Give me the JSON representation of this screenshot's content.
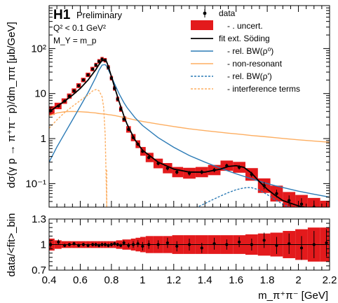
{
  "chart_data": [
    {
      "type": "scatter",
      "name": "cross-section",
      "experiment": "H1",
      "status": "Preliminary",
      "conditions": [
        "Q² < 0.1 GeV²",
        "M_Y = m_p"
      ],
      "ylabel": "dσ(γ p → π⁺π⁻ p)/dm_ππ [μb/GeV]",
      "xlim": [
        0.4,
        2.2
      ],
      "ylim": [
        0.03,
        900
      ],
      "yscale": "log",
      "yticks": [
        0.1,
        1,
        10,
        100
      ],
      "ytick_labels": [
        "10⁻¹",
        "1",
        "10",
        "10²"
      ],
      "legend_position": "top-right",
      "legend": [
        {
          "label": "data",
          "style": "marker"
        },
        {
          "label": "- . uncert.",
          "style": "box",
          "color": "#e31a1c"
        },
        {
          "label": "fit ext. Söding",
          "style": "line",
          "color": "#000000"
        },
        {
          "label": "- rel. BW(ρ⁰)",
          "style": "line",
          "color": "#2c7bb6"
        },
        {
          "label": "- non-resonant",
          "style": "line",
          "color": "#fdae61"
        },
        {
          "label": "- rel. BW(ρ')",
          "style": "dashed",
          "color": "#2c7bb6"
        },
        {
          "label": "- interference terms",
          "style": "dashed",
          "color": "#fdae61"
        }
      ],
      "data_points": {
        "x": [
          0.41,
          0.46,
          0.5,
          0.53,
          0.56,
          0.59,
          0.62,
          0.65,
          0.68,
          0.7,
          0.72,
          0.74,
          0.76,
          0.78,
          0.8,
          0.82,
          0.84,
          0.86,
          0.88,
          0.91,
          0.94,
          0.97,
          1.0,
          1.04,
          1.1,
          1.16,
          1.22,
          1.3,
          1.38,
          1.46,
          1.54,
          1.62,
          1.7,
          1.78,
          1.86,
          1.94,
          2.02,
          2.1,
          2.18
        ],
        "y": [
          4.2,
          5.3,
          6.8,
          8.8,
          11.5,
          15,
          20,
          26,
          35,
          43,
          52,
          58,
          55,
          38,
          22,
          13,
          7.5,
          4.5,
          2.7,
          1.6,
          1.05,
          0.75,
          0.52,
          0.38,
          0.28,
          0.22,
          0.18,
          0.17,
          0.18,
          0.2,
          0.25,
          0.23,
          0.16,
          0.09,
          0.06,
          0.042,
          0.035,
          0.03,
          0.026
        ],
        "yerr_rel": [
          0.15,
          0.06,
          0.05,
          0.04,
          0.04,
          0.04,
          0.03,
          0.03,
          0.03,
          0.03,
          0.03,
          0.03,
          0.03,
          0.03,
          0.03,
          0.03,
          0.04,
          0.04,
          0.05,
          0.05,
          0.06,
          0.07,
          0.08,
          0.09,
          0.1,
          0.12,
          0.12,
          0.13,
          0.12,
          0.12,
          0.11,
          0.12,
          0.15,
          0.2,
          0.22,
          0.3,
          0.35,
          0.4,
          0.45
        ],
        "unc_rel": [
          0.25,
          0.18,
          0.15,
          0.14,
          0.13,
          0.13,
          0.12,
          0.12,
          0.12,
          0.12,
          0.12,
          0.12,
          0.12,
          0.12,
          0.12,
          0.12,
          0.13,
          0.14,
          0.15,
          0.18,
          0.2,
          0.22,
          0.25,
          0.27,
          0.28,
          0.3,
          0.3,
          0.32,
          0.3,
          0.3,
          0.3,
          0.32,
          0.38,
          0.45,
          0.5,
          0.55,
          0.6,
          0.6,
          0.6
        ]
      },
      "curves": {
        "x": [
          0.4,
          0.45,
          0.5,
          0.55,
          0.6,
          0.65,
          0.7,
          0.72,
          0.74,
          0.76,
          0.77,
          0.78,
          0.8,
          0.82,
          0.85,
          0.88,
          0.9,
          0.95,
          1.0,
          1.1,
          1.2,
          1.3,
          1.4,
          1.5,
          1.55,
          1.6,
          1.65,
          1.7,
          1.75,
          1.8,
          1.85,
          1.9,
          2.0,
          2.1,
          2.2
        ],
        "fit": [
          3.9,
          5.2,
          6.8,
          9.2,
          13,
          20,
          34,
          44,
          54,
          55,
          50,
          40,
          24,
          14,
          6.5,
          3.2,
          2.1,
          0.95,
          0.55,
          0.3,
          0.21,
          0.18,
          0.18,
          0.21,
          0.24,
          0.25,
          0.23,
          0.17,
          0.11,
          0.075,
          0.055,
          0.042,
          0.032,
          0.027,
          0.024
        ],
        "bw_rho0": [
          0.3,
          0.65,
          1.3,
          2.6,
          5.2,
          10.5,
          23,
          33,
          43,
          44,
          40,
          34,
          24,
          16.5,
          9.8,
          6.3,
          4.9,
          2.95,
          1.95,
          1.05,
          0.64,
          0.42,
          0.3,
          0.22,
          0.19,
          0.165,
          0.145,
          0.128,
          0.113,
          0.1,
          0.09,
          0.082,
          0.068,
          0.058,
          0.05
        ],
        "non_resonant": [
          3.2,
          3.7,
          3.95,
          4.0,
          3.95,
          3.85,
          3.7,
          3.6,
          3.55,
          3.5,
          3.45,
          3.4,
          3.35,
          3.25,
          3.1,
          2.95,
          2.85,
          2.6,
          2.4,
          2.1,
          1.85,
          1.65,
          1.5,
          1.38,
          1.32,
          1.27,
          1.22,
          1.17,
          1.13,
          1.09,
          1.05,
          1.01,
          0.94,
          0.88,
          0.83
        ]
      },
      "bw_rho_prime": {
        "x": [
          1.3,
          1.35,
          1.4,
          1.45,
          1.5,
          1.55,
          1.6,
          1.65,
          1.68,
          1.7,
          1.75,
          1.8,
          1.85,
          1.9,
          1.95,
          2.0
        ],
        "y": [
          0.025,
          0.03,
          0.036,
          0.044,
          0.053,
          0.063,
          0.073,
          0.08,
          0.082,
          0.081,
          0.072,
          0.057,
          0.044,
          0.035,
          0.029,
          0.025
        ]
      },
      "interference": {
        "x": [
          0.4,
          0.45,
          0.5,
          0.55,
          0.6,
          0.65,
          0.68,
          0.7,
          0.72,
          0.74,
          0.75,
          0.76,
          0.765,
          0.77
        ],
        "y": [
          1.7,
          2.6,
          3.8,
          5.2,
          7.0,
          9.3,
          11.5,
          12.3,
          11.6,
          8.5,
          5.0,
          1.2,
          0.2,
          0.03
        ]
      }
    },
    {
      "type": "scatter",
      "name": "ratio",
      "ylabel": "data/<fit>_bin",
      "xlabel": "m_π⁺π⁻ [GeV]",
      "xlim": [
        0.4,
        2.2
      ],
      "ylim": [
        0.7,
        1.3
      ],
      "yticks": [
        0.7,
        1,
        1.3
      ],
      "ytick_labels": [
        "0.7",
        "1",
        "1.3"
      ],
      "xticks": [
        0.4,
        0.6,
        0.8,
        1,
        1.2,
        1.4,
        1.6,
        1.8,
        2,
        2.2
      ],
      "xtick_labels": [
        "0.4",
        "0.6",
        "0.8",
        "1",
        "1.2",
        "1.4",
        "1.6",
        "1.8",
        "2",
        "2.2"
      ],
      "reference_line": 1,
      "x": [
        0.41,
        0.46,
        0.5,
        0.53,
        0.56,
        0.59,
        0.62,
        0.65,
        0.68,
        0.7,
        0.72,
        0.74,
        0.76,
        0.78,
        0.8,
        0.82,
        0.84,
        0.86,
        0.88,
        0.91,
        0.94,
        0.97,
        1.0,
        1.04,
        1.1,
        1.16,
        1.22,
        1.3,
        1.38,
        1.46,
        1.54,
        1.62,
        1.7,
        1.78,
        1.86,
        1.94,
        2.02,
        2.1,
        2.18
      ],
      "values": [
        1.0,
        1.03,
        0.99,
        1.0,
        1.01,
        0.99,
        1.0,
        0.99,
        1.0,
        1.0,
        0.99,
        1.0,
        1.0,
        0.99,
        1.0,
        1.01,
        1.0,
        0.99,
        1.02,
        0.99,
        1.0,
        1.01,
        0.98,
        1.0,
        1.0,
        1.02,
        0.98,
        1.0,
        0.96,
        1.01,
        1.0,
        1.03,
        1.0,
        1.05,
        0.99,
        1.01,
        0.96,
        1.0,
        1.02
      ],
      "err": [
        0.04,
        0.03,
        0.02,
        0.02,
        0.02,
        0.02,
        0.02,
        0.02,
        0.02,
        0.02,
        0.02,
        0.02,
        0.02,
        0.02,
        0.02,
        0.02,
        0.02,
        0.02,
        0.03,
        0.03,
        0.04,
        0.04,
        0.05,
        0.05,
        0.05,
        0.06,
        0.06,
        0.07,
        0.06,
        0.07,
        0.06,
        0.06,
        0.07,
        0.09,
        0.1,
        0.12,
        0.14,
        0.16,
        0.16
      ],
      "unc": [
        0.07,
        0.05,
        0.04,
        0.04,
        0.04,
        0.04,
        0.04,
        0.04,
        0.04,
        0.04,
        0.04,
        0.04,
        0.04,
        0.04,
        0.04,
        0.04,
        0.05,
        0.05,
        0.06,
        0.06,
        0.07,
        0.08,
        0.09,
        0.1,
        0.1,
        0.1,
        0.11,
        0.11,
        0.11,
        0.11,
        0.11,
        0.11,
        0.12,
        0.13,
        0.14,
        0.16,
        0.18,
        0.2,
        0.2
      ]
    }
  ]
}
